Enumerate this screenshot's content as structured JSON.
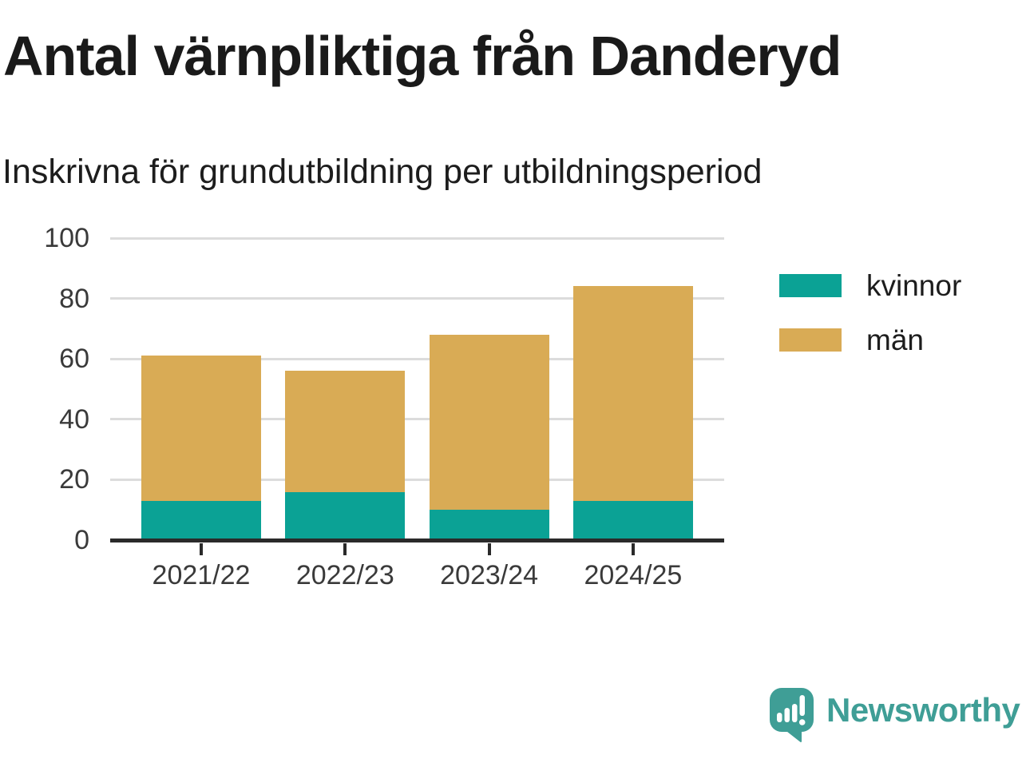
{
  "header": {
    "title": "Antal värnpliktiga från Danderyd",
    "subtitle": "Inskrivna för grundutbildning per utbildningsperiod"
  },
  "chart_data": {
    "type": "bar",
    "stacked": true,
    "title": "Antal värnpliktiga från Danderyd",
    "subtitle": "Inskrivna för grundutbildning per utbildningsperiod",
    "categories": [
      "2021/22",
      "2022/23",
      "2023/24",
      "2024/25"
    ],
    "series": [
      {
        "name": "kvinnor",
        "color": "#0ba295",
        "values": [
          13,
          16,
          10,
          13
        ]
      },
      {
        "name": "män",
        "color": "#d9ab55",
        "values": [
          48,
          40,
          58,
          71
        ]
      }
    ],
    "xlabel": "",
    "ylabel": "",
    "ylim": [
      0,
      100
    ],
    "yticks": [
      0,
      20,
      40,
      60,
      80,
      100
    ],
    "grid": "horizontal",
    "legend_position": "right"
  },
  "legend": {
    "items": [
      {
        "label": "kvinnor",
        "color": "#0ba295"
      },
      {
        "label": "män",
        "color": "#d9ab55"
      }
    ]
  },
  "brand": {
    "name": "Newsworthy",
    "color": "#3f9e96"
  },
  "colors": {
    "title_text": "#1a1a1a",
    "axis_text": "#3a3a3a",
    "gridline": "#dcdcdc",
    "axis_line": "#2a2a2a",
    "background": "#ffffff"
  }
}
